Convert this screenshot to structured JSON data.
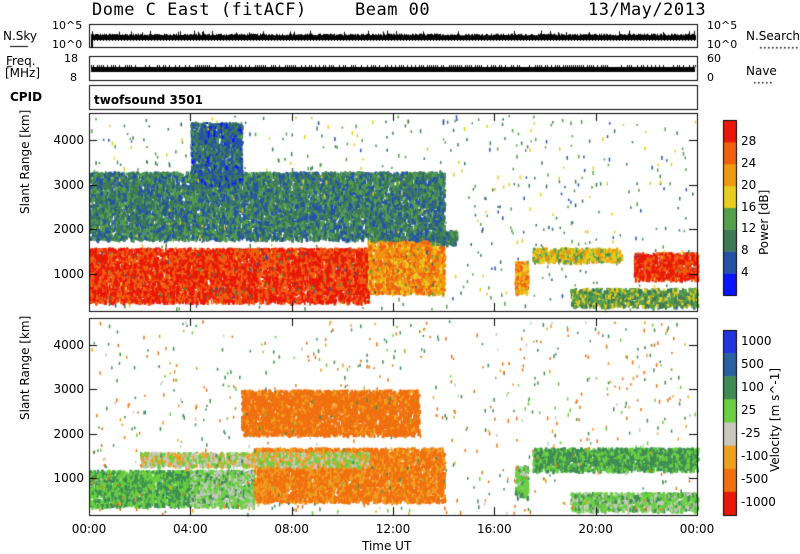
{
  "header": {
    "title": "Dome C East (fitACF)",
    "beam": "Beam 00",
    "date": "13/May/2013"
  },
  "strips": {
    "nsky_label": "N.Sky",
    "nsky_top": "10^5",
    "nsky_bottom": "10^0",
    "nsearch_top": "10^5",
    "nsearch_bottom": "10^0",
    "nsearch_label": "N.Search",
    "freq_label": "Freq.",
    "freq_unit": "[MHz]",
    "freq_top": "18",
    "freq_bottom": "8",
    "nave_top": "60",
    "nave_bottom": "0",
    "nave_label": "Nave",
    "cpid_label": "CPID",
    "cpid_value": "twofsound 3501"
  },
  "chart_data": [
    {
      "type": "heatmap",
      "name": "power",
      "xlabel": "Time UT",
      "ylabel": "Slant Range [km]",
      "xticks": [
        "00:00",
        "04:00",
        "08:00",
        "12:00",
        "16:00",
        "20:00",
        "00:00"
      ],
      "x_hours": [
        0,
        4,
        8,
        12,
        16,
        20,
        24
      ],
      "xlim_hours": [
        0,
        24
      ],
      "yticks": [
        1000,
        2000,
        3000,
        4000
      ],
      "ylim_km": [
        180,
        4600
      ],
      "colorbar": {
        "label": "Power [dB]",
        "ticks": [
          "4",
          "8",
          "12",
          "16",
          "20",
          "24",
          "28"
        ],
        "range": [
          0,
          32
        ],
        "colors": [
          "#0a14ff",
          "#2452a8",
          "#3d7a56",
          "#55a04a",
          "#e8cc20",
          "#f09810",
          "#f06010",
          "#e81808"
        ]
      },
      "regions": [
        {
          "t": [
            0,
            11
          ],
          "r": [
            400,
            1600
          ],
          "level": 29
        },
        {
          "t": [
            11,
            14
          ],
          "r": [
            600,
            1800
          ],
          "level": 23
        },
        {
          "t": [
            13.5,
            14.5
          ],
          "r": [
            1700,
            2000
          ],
          "level": 10
        },
        {
          "t": [
            16.8,
            17.3
          ],
          "r": [
            600,
            1300
          ],
          "level": 22
        },
        {
          "t": [
            17.5,
            21
          ],
          "r": [
            1300,
            1600
          ],
          "level": 18
        },
        {
          "t": [
            21.5,
            24
          ],
          "r": [
            900,
            1500
          ],
          "level": 29
        },
        {
          "t": [
            19,
            24
          ],
          "r": [
            300,
            700
          ],
          "level": 14
        },
        {
          "t": [
            0,
            14
          ],
          "r": [
            1800,
            3300
          ],
          "level": 10
        },
        {
          "t": [
            4,
            6
          ],
          "r": [
            3000,
            4400
          ],
          "level": 8
        }
      ]
    },
    {
      "type": "heatmap",
      "name": "velocity",
      "xlabel": "Time UT",
      "ylabel": "Slant Range [km]",
      "xticks": [
        "00:00",
        "04:00",
        "08:00",
        "12:00",
        "16:00",
        "20:00",
        "00:00"
      ],
      "x_hours": [
        0,
        4,
        8,
        12,
        16,
        20,
        24
      ],
      "xlim_hours": [
        0,
        24
      ],
      "yticks": [
        1000,
        2000,
        3000,
        4000
      ],
      "ylim_km": [
        180,
        4600
      ],
      "colorbar": {
        "label": "Velocity [m s^-1]",
        "ticks": [
          "1000",
          "500",
          "100",
          "25",
          "-25",
          "-100",
          "-500",
          "-1000"
        ],
        "colors": [
          "#2034e0",
          "#2a60a0",
          "#3e8c54",
          "#6ad040",
          "#c8c8c0",
          "#f0a020",
          "#f07010",
          "#e81808"
        ]
      },
      "regions": [
        {
          "t": [
            0,
            4
          ],
          "r": [
            400,
            1200
          ],
          "level": 100
        },
        {
          "t": [
            4,
            6.5
          ],
          "r": [
            400,
            1200
          ],
          "level": 50
        },
        {
          "t": [
            6.5,
            14
          ],
          "r": [
            500,
            1700
          ],
          "level": -120
        },
        {
          "t": [
            2,
            11
          ],
          "r": [
            1300,
            1600
          ],
          "level": 0
        },
        {
          "t": [
            16.8,
            17.3
          ],
          "r": [
            600,
            1300
          ],
          "level": 80
        },
        {
          "t": [
            17.5,
            24
          ],
          "r": [
            1200,
            1700
          ],
          "level": 120
        },
        {
          "t": [
            19,
            24
          ],
          "r": [
            300,
            700
          ],
          "level": 60
        },
        {
          "t": [
            6,
            13
          ],
          "r": [
            2000,
            3000
          ],
          "level": -150
        }
      ]
    }
  ]
}
